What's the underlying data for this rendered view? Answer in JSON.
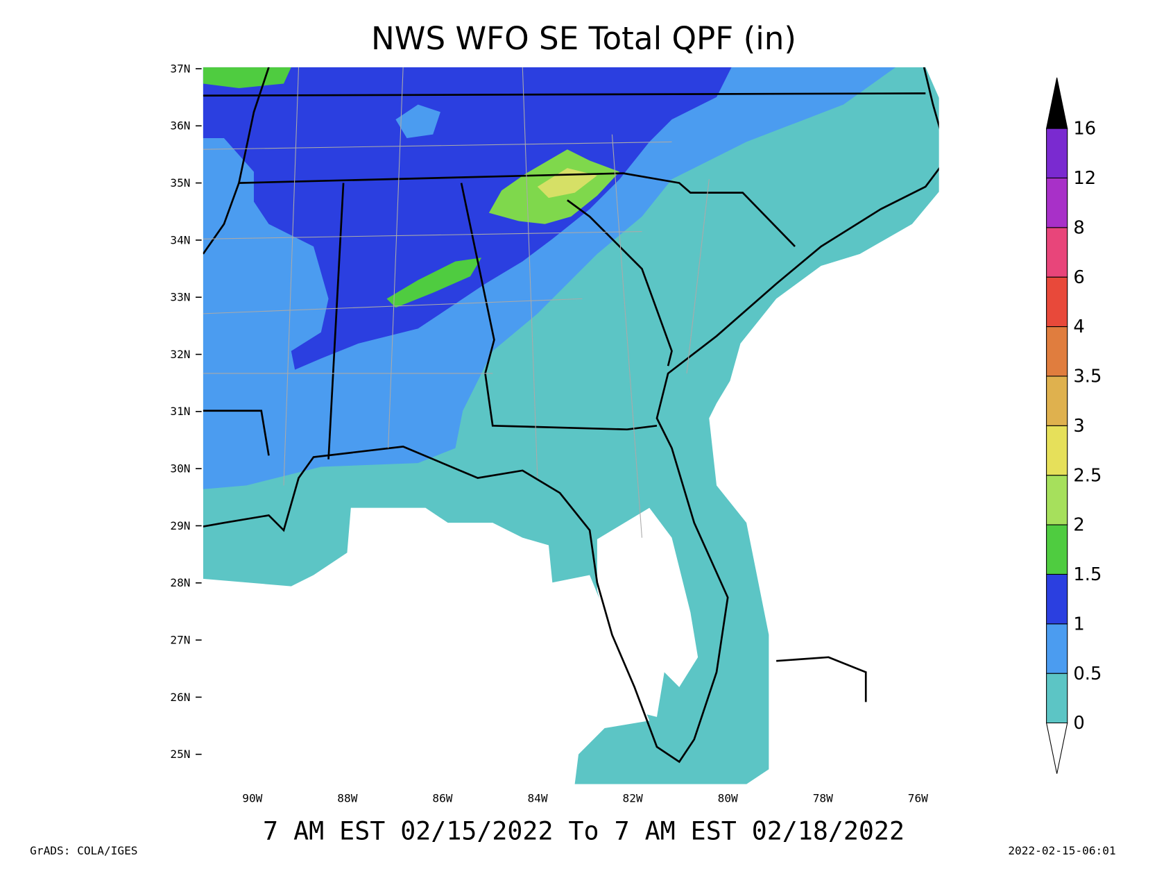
{
  "title": "NWS WFO SE Total QPF (in)",
  "subtitle": "7 AM EST 02/15/2022 To 7 AM EST 02/18/2022",
  "footer_left": "GrADS: COLA/IGES",
  "footer_right": "2022-02-15-06:01",
  "lat_labels": [
    "37N",
    "36N",
    "35N",
    "34N",
    "33N",
    "32N",
    "31N",
    "30N",
    "29N",
    "28N",
    "27N",
    "26N",
    "25N"
  ],
  "lon_labels": [
    "90W",
    "88W",
    "86W",
    "84W",
    "82W",
    "80W",
    "78W",
    "76W"
  ],
  "colorbar": {
    "labels": [
      "0",
      "0.5",
      "1",
      "1.5",
      "2",
      "2.5",
      "3",
      "3.5",
      "4",
      "6",
      "8",
      "12",
      "16"
    ],
    "colors": [
      "#5cc5c5",
      "#4b9cf0",
      "#2b3fe0",
      "#4fcc40",
      "#a6e05c",
      "#e6e05a",
      "#dfb14e",
      "#e07d3e",
      "#e8493a",
      "#e8457a",
      "#a830c8",
      "#7a2ad0"
    ],
    "above_color": "#000000",
    "below_color": "#ffffff"
  }
}
